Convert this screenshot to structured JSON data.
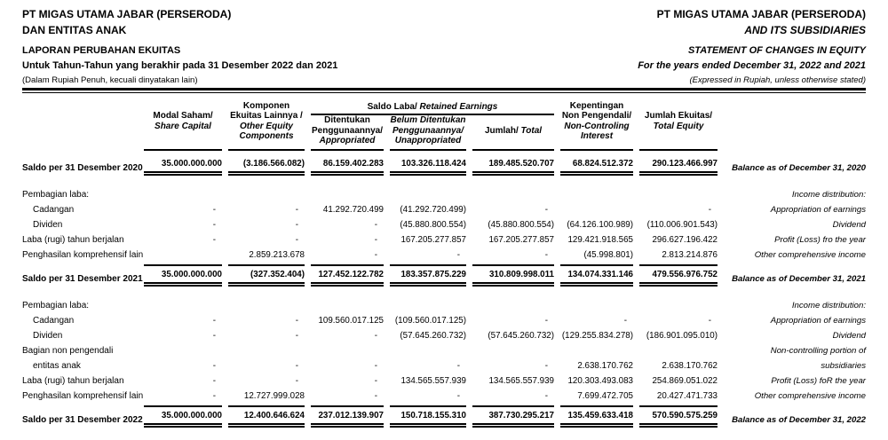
{
  "header_left": {
    "line1": "PT MIGAS UTAMA JABAR (PERSERODA)",
    "line2": "DAN ENTITAS ANAK",
    "line3": "LAPORAN PERUBAHAN EKUITAS",
    "line4": "Untuk Tahun-Tahun yang berakhir pada 31 Desember 2022 dan 2021",
    "line5": "(Dalam Rupiah Penuh, kecuali dinyatakan lain)"
  },
  "header_right": {
    "line1": "PT MIGAS UTAMA JABAR (PERSERODA)",
    "line2": "AND ITS SUBSIDIARIES",
    "line3": "STATEMENT OF CHANGES IN EQUITY",
    "line4": "For the years ended December 31, 2022 and 2021",
    "line5": "(Expressed in Rupiah, unless otherwise stated)"
  },
  "table": {
    "group_header": {
      "id": "Saldo Laba/",
      "en": "Retained Earnings"
    },
    "columns": [
      {
        "id": "Modal Saham/",
        "en": "Share Capital"
      },
      {
        "id": "Komponen Ekuitas Lainnya /",
        "en": "Other Equity Components"
      },
      {
        "id": "Ditentukan Penggunaannya/",
        "en": "Appropriated"
      },
      {
        "id": "Belum Ditentukan Penggunaannya/",
        "en": "Unappropriated"
      },
      {
        "id": "Jumlah/",
        "en": "Total"
      },
      {
        "id": "Kepentingan Non Pengendali/",
        "en": "Non-Controling Interest"
      },
      {
        "id": "Jumlah Ekuitas/",
        "en": "Total Equity"
      }
    ],
    "rows": [
      {
        "style": "total",
        "label_id": "Saldo per 31 Desember 2020",
        "label_en": "Balance as of December 31, 2020",
        "values": [
          "35.000.000.000",
          "(3.186.566.082)",
          "86.159.402.283",
          "103.326.118.424",
          "189.485.520.707",
          "68.824.512.372",
          "290.123.466.997"
        ]
      },
      {
        "style": "spacer"
      },
      {
        "style": "section",
        "label_id": "Pembagian laba:",
        "label_en": "Income distribution:",
        "values": [
          "",
          "",
          "",
          "",
          "",
          "",
          ""
        ]
      },
      {
        "style": "item",
        "indent": 1,
        "label_id": "Cadangan",
        "label_en": "Appropriation of earnings",
        "values": [
          "-",
          "-",
          "41.292.720.499",
          "(41.292.720.499)",
          "-",
          "",
          "-"
        ]
      },
      {
        "style": "item",
        "indent": 1,
        "label_id": "Dividen",
        "label_en": "Dividend",
        "values": [
          "-",
          "-",
          "-",
          "(45.880.800.554)",
          "(45.880.800.554)",
          "(64.126.100.989)",
          "(110.006.901.543)"
        ]
      },
      {
        "style": "item",
        "label_id": "Laba (rugi) tahun berjalan",
        "label_en": "Profit (Loss) fro the year",
        "values": [
          "-",
          "-",
          "-",
          "167.205.277.857",
          "167.205.277.857",
          "129.421.918.565",
          "296.627.196.422"
        ]
      },
      {
        "style": "item",
        "label_id": "Penghasilan komprehensif lain",
        "label_en": "Other comprehensive income",
        "values": [
          "",
          "2.859.213.678",
          "-",
          "-",
          "-",
          "(45.998.801)",
          "2.813.214.876"
        ]
      },
      {
        "style": "total",
        "topline": true,
        "label_id": "Saldo per 31 Desember 2021",
        "label_en": "Balance as of December 31, 2021",
        "values": [
          "35.000.000.000",
          "(327.352.404)",
          "127.452.122.782",
          "183.357.875.229",
          "310.809.998.011",
          "134.074.331.146",
          "479.556.976.752"
        ]
      },
      {
        "style": "spacer"
      },
      {
        "style": "section",
        "label_id": "Pembagian laba:",
        "label_en": "Income distribution:",
        "values": [
          "",
          "",
          "",
          "",
          "",
          "",
          ""
        ]
      },
      {
        "style": "item",
        "indent": 1,
        "label_id": "Cadangan",
        "label_en": "Appropriation of earnings",
        "values": [
          "-",
          "-",
          "109.560.017.125",
          "(109.560.017.125)",
          "-",
          "-",
          "-"
        ]
      },
      {
        "style": "item",
        "indent": 1,
        "label_id": "Dividen",
        "label_en": "Dividend",
        "values": [
          "-",
          "-",
          "-",
          "(57.645.260.732)",
          "(57.645.260.732)",
          "(129.255.834.278)",
          "(186.901.095.010)"
        ]
      },
      {
        "style": "item",
        "label_id": "Bagian non pengendali",
        "label_en": "Non-controlling portion of",
        "values": [
          "",
          "",
          "",
          "",
          "",
          "",
          ""
        ]
      },
      {
        "style": "item",
        "indent": 1,
        "label_id": "entitas anak",
        "label_en": "subsidiaries",
        "values": [
          "-",
          "-",
          "-",
          "-",
          "-",
          "2.638.170.762",
          "2.638.170.762"
        ]
      },
      {
        "style": "item",
        "label_id": "Laba (rugi) tahun berjalan",
        "label_en": "Profit (Loss) foR the year",
        "values": [
          "-",
          "-",
          "-",
          "134.565.557.939",
          "134.565.557.939",
          "120.303.493.083",
          "254.869.051.022"
        ]
      },
      {
        "style": "item",
        "label_id": "Penghasilan komprehensif lain",
        "label_en": "Other comprehensive income",
        "values": [
          "-",
          "12.727.999.028",
          "-",
          "-",
          "-",
          "7.699.472.705",
          "20.427.471.733"
        ]
      },
      {
        "style": "total",
        "topline": true,
        "label_id": "Saldo per 31 Desember 2022",
        "label_en": "Balance as of December 31, 2022",
        "values": [
          "35.000.000.000",
          "12.400.646.624",
          "237.012.139.907",
          "150.718.155.310",
          "387.730.295.217",
          "135.459.633.418",
          "570.590.575.259"
        ]
      }
    ]
  }
}
